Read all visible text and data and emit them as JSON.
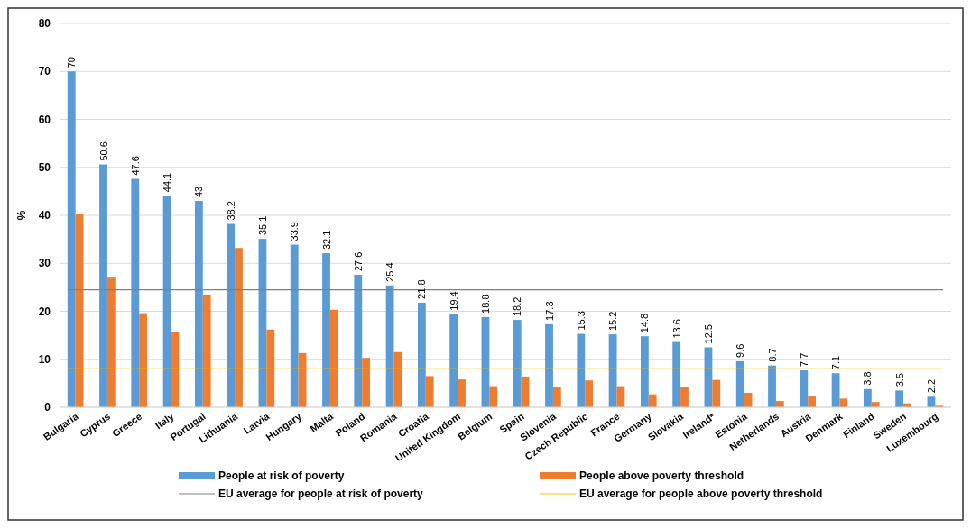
{
  "chart_data": {
    "type": "bar",
    "ylabel": "%",
    "categories": [
      "Bulgaria",
      "Cyprus",
      "Greece",
      "Italy",
      "Portugal",
      "Lithuania",
      "Latvia",
      "Hungary",
      "Malta",
      "Poland",
      "Romania",
      "Croatia",
      "United Kingdom",
      "Belgium",
      "Spain",
      "Slovenia",
      "Czech Republic",
      "France",
      "Germany",
      "Slovakia",
      "Ireland*",
      "Estonia",
      "Netherlands",
      "Austria",
      "Denmark",
      "Finland",
      "Sweden",
      "Luxembourg"
    ],
    "series": [
      {
        "name": "People at risk of poverty",
        "color": "#5b9bd5",
        "values": [
          70,
          50.6,
          47.6,
          44.1,
          43,
          38.2,
          35.1,
          33.9,
          32.1,
          27.6,
          25.4,
          21.8,
          19.4,
          18.8,
          18.2,
          17.3,
          15.3,
          15.2,
          14.8,
          13.6,
          12.5,
          9.6,
          8.7,
          7.7,
          7.1,
          3.8,
          3.5,
          2.2
        ],
        "value_labels": [
          "70",
          "50.6",
          "47.6",
          "44.1",
          "43",
          "38.2",
          "35.1",
          "33.9",
          "32.1",
          "27.6",
          "25.4",
          "21.8",
          "19.4",
          "18.8",
          "18.2",
          "17.3",
          "15.3",
          "15.2",
          "14.8",
          "13.6",
          "12.5",
          "9.6",
          "8.7",
          "7.7",
          "7.1",
          "3.8",
          "3.5",
          "2.2"
        ]
      },
      {
        "name": "People above poverty threshold",
        "color": "#ed7d31",
        "values": [
          40.2,
          27.2,
          19.6,
          15.7,
          23.5,
          33.2,
          16.2,
          11.3,
          20.3,
          10.3,
          11.5,
          6.5,
          5.8,
          4.4,
          6.4,
          4.2,
          5.6,
          4.4,
          2.7,
          4.2,
          5.7,
          3.0,
          1.3,
          2.3,
          1.8,
          1.1,
          0.8,
          0.3
        ]
      }
    ],
    "ref_lines": [
      {
        "axis": "y",
        "value": 24.5,
        "label": "EU average for people at risk of poverty",
        "color": "#808080"
      },
      {
        "axis": "y",
        "value": 8,
        "label": "EU average for people above poverty threshold",
        "color": "#ffc000"
      }
    ],
    "ylim": [
      0,
      80
    ],
    "yticks": [
      0,
      10,
      20,
      30,
      40,
      50,
      60,
      70,
      80
    ],
    "grid": "y",
    "legend": "bottom"
  }
}
